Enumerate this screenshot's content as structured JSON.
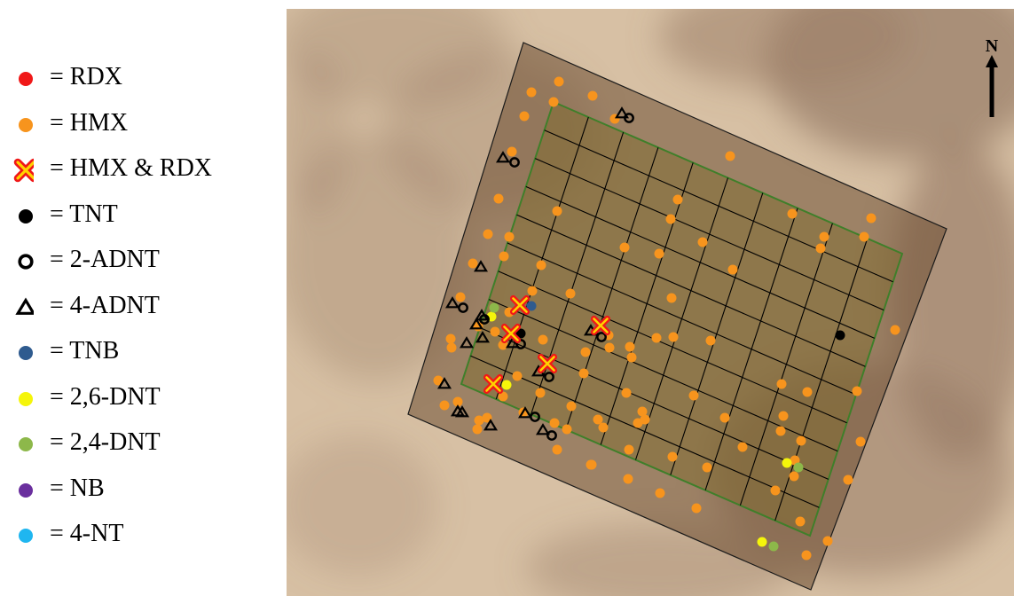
{
  "legend": [
    {
      "key": "rdx",
      "label": "= RDX",
      "symbol": "filled-circle",
      "color": "#f01818"
    },
    {
      "key": "hmx",
      "label": "= HMX",
      "symbol": "filled-circle",
      "color": "#f7941d"
    },
    {
      "key": "hmx_rdx",
      "label": "= HMX & RDX",
      "symbol": "x-cross",
      "color": "#f01818",
      "inner_color": "#ffd200"
    },
    {
      "key": "tnt",
      "label": "= TNT",
      "symbol": "filled-circle",
      "color": "#000000"
    },
    {
      "key": "adnt2",
      "label": "= 2-ADNT",
      "symbol": "open-circle",
      "color": "#000000"
    },
    {
      "key": "adnt4",
      "label": "= 4-ADNT",
      "symbol": "open-triangle",
      "color": "#000000"
    },
    {
      "key": "tnb",
      "label": "= TNB",
      "symbol": "filled-circle",
      "color": "#2f5b8f"
    },
    {
      "key": "dnt26",
      "label": "= 2,6-DNT",
      "symbol": "filled-circle",
      "color": "#f5f50a"
    },
    {
      "key": "dnt24",
      "label": "= 2,4-DNT",
      "symbol": "filled-circle",
      "color": "#8db84a"
    },
    {
      "key": "nb",
      "label": "= NB",
      "symbol": "filled-circle",
      "color": "#6a2f9e"
    },
    {
      "key": "nt4",
      "label": "= 4-NT",
      "symbol": "filled-circle",
      "color": "#1fb6f0"
    }
  ],
  "map": {
    "north_label": "N",
    "colors": {
      "sand": "#d7c0a4",
      "sand_dark": "#9a7d68",
      "plot_fill": "#6e4e33",
      "grid_fill": "#7d6a2a",
      "grid_border": "#3f7f2a",
      "grid_lines": "#000000"
    }
  }
}
